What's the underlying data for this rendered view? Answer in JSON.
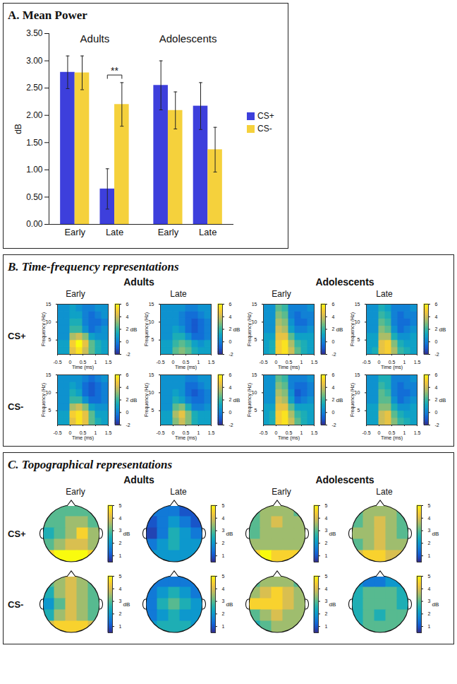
{
  "chart_data": [
    {
      "type": "bar",
      "title": "A. Mean Power",
      "ylabel": "dB",
      "categories": [
        "Early",
        "Late",
        "Early",
        "Late"
      ],
      "category_groups": [
        "Adults",
        "Adults",
        "Adolescents",
        "Adolescents"
      ],
      "series": [
        {
          "name": "CS+",
          "color": "#3d3fdc",
          "values": [
            2.79,
            0.65,
            2.55,
            2.17
          ],
          "errors": [
            0.3,
            0.37,
            0.45,
            0.43
          ]
        },
        {
          "name": "CS-",
          "color": "#f5d13c",
          "values": [
            2.78,
            2.2,
            2.09,
            1.37
          ],
          "errors": [
            0.31,
            0.4,
            0.34,
            0.41
          ]
        }
      ],
      "ylim": [
        0,
        3.5
      ],
      "yticks": [
        {
          "value": 0,
          "label": "0.00"
        },
        {
          "value": 0.5,
          "label": "0.50"
        },
        {
          "value": 1,
          "label": "1.00"
        },
        {
          "value": 1.5,
          "label": "1.50"
        },
        {
          "value": 2,
          "label": "2.00"
        },
        {
          "value": 2.5,
          "label": "2.50"
        },
        {
          "value": 3,
          "label": "3.00"
        },
        {
          "value": 3.5,
          "label": "3.50"
        }
      ],
      "legend": "right",
      "annotations": [
        {
          "text": "**",
          "category_index": 1,
          "between": [
            "CS+",
            "CS-"
          ]
        }
      ]
    },
    {
      "type": "heatmap",
      "title": "B. Time-frequency representations",
      "groups": [
        "Adults",
        "Adolescents"
      ],
      "phases": [
        "Early",
        "Late"
      ],
      "rows": [
        "CS+",
        "CS-"
      ],
      "xlabel": "Time (ms)",
      "ylabel": "Frequency (Hz)",
      "xlim": [
        -0.5,
        1.5
      ],
      "xticks": [
        -0.5,
        0,
        0.5,
        1,
        1.5
      ],
      "ylim": [
        1,
        15
      ],
      "yticks": [
        5,
        10,
        15
      ],
      "x_bins": [
        -0.5,
        -0.25,
        0,
        0.25,
        0.5,
        0.75,
        1,
        1.25,
        1.5
      ],
      "y_bins": [
        1,
        3,
        5,
        7,
        9,
        11,
        13,
        15
      ],
      "colorbar": {
        "label": "dB",
        "range": [
          -2,
          6
        ],
        "ticks": [
          -2,
          0,
          2,
          4,
          6
        ]
      },
      "maps": [
        {
          "group": "Adults",
          "phase": "Early",
          "row": "CS+",
          "cells": [
            [
              1,
              1,
              4.5,
              5.5,
              4,
              2.5,
              1.5,
              1
            ],
            [
              1,
              1,
              5,
              6,
              4.5,
              2.5,
              1.5,
              1
            ],
            [
              0.5,
              0.5,
              3.5,
              4,
              3,
              1,
              0.5,
              0.5
            ],
            [
              0.5,
              0.5,
              2,
              2,
              0.5,
              -0.5,
              0,
              0.5
            ],
            [
              0.5,
              0.5,
              1.5,
              1.5,
              0,
              -0.5,
              -0.5,
              0
            ],
            [
              0.5,
              0.5,
              1,
              1,
              0,
              -0.5,
              0,
              0.5
            ],
            [
              0.5,
              0.5,
              1,
              0.5,
              0,
              0,
              0.5,
              0.5
            ]
          ]
        },
        {
          "group": "Adults",
          "phase": "Late",
          "row": "CS+",
          "cells": [
            [
              1,
              1,
              2.5,
              3,
              2.5,
              1.5,
              1,
              1
            ],
            [
              1,
              1,
              2,
              2.5,
              2,
              1,
              0.5,
              1
            ],
            [
              0.5,
              0.5,
              1.5,
              1.5,
              0.5,
              -0.5,
              -0.5,
              0
            ],
            [
              0.5,
              0.5,
              1,
              0.5,
              -0.5,
              -1,
              -0.5,
              0
            ],
            [
              0.5,
              0.5,
              0.5,
              0,
              -0.5,
              -1,
              -0.5,
              0
            ],
            [
              0.5,
              0.5,
              0.5,
              0,
              -0.5,
              -0.5,
              0,
              0.5
            ],
            [
              0.5,
              0.5,
              0.5,
              0.5,
              0,
              0,
              0.5,
              0.5
            ]
          ]
        },
        {
          "group": "Adults",
          "phase": "Early",
          "row": "CS-",
          "cells": [
            [
              1,
              1,
              4.5,
              5.5,
              4.5,
              2.5,
              1.5,
              1
            ],
            [
              1,
              1,
              5,
              5.5,
              4.5,
              2.5,
              1,
              1
            ],
            [
              0.5,
              0.5,
              3.5,
              4,
              3,
              1,
              0.5,
              0.5
            ],
            [
              0.5,
              0.5,
              2,
              2,
              0.5,
              -0.5,
              -0.5,
              0
            ],
            [
              0.5,
              0.5,
              1.5,
              1,
              -0.5,
              -1,
              -0.5,
              0
            ],
            [
              0.5,
              0.5,
              1,
              0.5,
              -0.5,
              -1,
              -0.5,
              0
            ],
            [
              0.5,
              0.5,
              0.5,
              0.5,
              0,
              -0.5,
              0,
              0.5
            ]
          ]
        },
        {
          "group": "Adults",
          "phase": "Late",
          "row": "CS-",
          "cells": [
            [
              1,
              1,
              3,
              4,
              3,
              1.5,
              1,
              1
            ],
            [
              1,
              1,
              3.5,
              4.5,
              3,
              1.5,
              1,
              1
            ],
            [
              0.5,
              0.5,
              2.5,
              3,
              1.5,
              0,
              0,
              0.5
            ],
            [
              0.5,
              0.5,
              1.5,
              1,
              0,
              -0.5,
              -0.5,
              0
            ],
            [
              0.5,
              0.5,
              1,
              0.5,
              -0.5,
              -1,
              -0.5,
              0
            ],
            [
              0.5,
              0.5,
              0.5,
              0.5,
              -0.5,
              -0.5,
              0,
              0.5
            ],
            [
              0.5,
              0.5,
              0.5,
              0.5,
              0,
              0,
              0.5,
              0.5
            ]
          ]
        },
        {
          "group": "Adolescents",
          "phase": "Early",
          "row": "CS+",
          "cells": [
            [
              1,
              1.5,
              5,
              5.5,
              4,
              2.5,
              1.5,
              1
            ],
            [
              1,
              1.5,
              5,
              5.5,
              3.5,
              2,
              1.5,
              1
            ],
            [
              1,
              1,
              4.5,
              4.5,
              2.5,
              1,
              1,
              1
            ],
            [
              0.5,
              0.5,
              4,
              3.5,
              1,
              0,
              0,
              0.5
            ],
            [
              0.5,
              0.5,
              3.5,
              3,
              0.5,
              -0.5,
              -0.5,
              0
            ],
            [
              0.5,
              0.5,
              3,
              2.5,
              0,
              -0.5,
              0,
              0
            ],
            [
              0.5,
              0.5,
              2.5,
              2,
              0,
              0,
              0,
              0.5
            ]
          ]
        },
        {
          "group": "Adolescents",
          "phase": "Late",
          "row": "CS+",
          "cells": [
            [
              1,
              1.5,
              4.5,
              5,
              3.5,
              2,
              1.5,
              1
            ],
            [
              1,
              1,
              4.5,
              5,
              3,
              1.5,
              1,
              1
            ],
            [
              1,
              1,
              3.5,
              3.5,
              1.5,
              0.5,
              0.5,
              1
            ],
            [
              0.5,
              0.5,
              3,
              2.5,
              0.5,
              -0.5,
              0,
              0.5
            ],
            [
              0.5,
              0.5,
              2.5,
              2,
              0,
              -0.5,
              -0.5,
              0
            ],
            [
              0.5,
              0.5,
              2,
              1.5,
              0,
              -0.5,
              0,
              0
            ],
            [
              0.5,
              0.5,
              1.5,
              1,
              0,
              0,
              0,
              0.5
            ]
          ]
        },
        {
          "group": "Adolescents",
          "phase": "Early",
          "row": "CS-",
          "cells": [
            [
              1,
              1.5,
              5,
              5.5,
              4,
              2.5,
              1.5,
              1
            ],
            [
              1,
              1.5,
              5,
              5.5,
              3.5,
              2,
              1.5,
              1
            ],
            [
              1,
              1,
              4.5,
              4.5,
              2.5,
              1,
              1,
              1
            ],
            [
              0.5,
              0.5,
              4,
              3.5,
              1,
              -0.5,
              0,
              0.5
            ],
            [
              0.5,
              0.5,
              3.5,
              3,
              0.5,
              -1,
              -0.5,
              0
            ],
            [
              0.5,
              0.5,
              3,
              2.5,
              0,
              -0.5,
              -0.5,
              0
            ],
            [
              0.5,
              0.5,
              2.5,
              2,
              0,
              0,
              0,
              0.5
            ]
          ]
        },
        {
          "group": "Adolescents",
          "phase": "Late",
          "row": "CS-",
          "cells": [
            [
              1,
              1,
              4,
              4.5,
              3,
              2,
              1.5,
              1
            ],
            [
              1,
              1,
              4,
              4.5,
              2.5,
              1.5,
              1,
              1
            ],
            [
              1,
              1,
              3,
              3,
              1.5,
              0.5,
              0.5,
              1
            ],
            [
              0.5,
              0.5,
              2.5,
              2.5,
              0.5,
              -0.5,
              0,
              0.5
            ],
            [
              0.5,
              0.5,
              2.5,
              2,
              0,
              -0.5,
              -0.5,
              0
            ],
            [
              0.5,
              0.5,
              2,
              1.5,
              0,
              -0.5,
              0,
              0
            ],
            [
              0.5,
              0.5,
              1.5,
              1.5,
              0,
              0,
              0,
              0.5
            ]
          ]
        }
      ]
    },
    {
      "type": "topomap",
      "title": "C. Topographical representations",
      "groups": [
        "Adults",
        "Adolescents"
      ],
      "phases": [
        "Early",
        "Late"
      ],
      "rows": [
        "CS+",
        "CS-"
      ],
      "tick_labels": false,
      "colorbar": {
        "label": "dB",
        "range": [
          0.5,
          5
        ],
        "ticks": [
          1,
          2,
          3,
          4,
          5
        ]
      },
      "maps": [
        {
          "group": "Adults",
          "phase": "Early",
          "row": "CS+",
          "cells": [
            [
              3,
              3,
              3,
              3,
              3
            ],
            [
              3,
              3,
              3.5,
              3.5,
              3
            ],
            [
              2.5,
              3,
              3.5,
              4.5,
              3.5
            ],
            [
              3,
              3.5,
              4,
              4,
              3.5
            ],
            [
              4.5,
              5,
              5,
              5,
              4.5
            ]
          ]
        },
        {
          "group": "Adults",
          "phase": "Late",
          "row": "CS+",
          "cells": [
            [
              1.5,
              1.5,
              1.5,
              1,
              1
            ],
            [
              1,
              1.5,
              2,
              1.5,
              1
            ],
            [
              0.8,
              1.5,
              2.5,
              2,
              1.5
            ],
            [
              1.5,
              2,
              2.5,
              2,
              2
            ],
            [
              2,
              2,
              2,
              2,
              2
            ]
          ]
        },
        {
          "group": "Adults",
          "phase": "Early",
          "row": "CS-",
          "cells": [
            [
              3,
              3.5,
              4,
              3.5,
              3
            ],
            [
              2.5,
              3.5,
              4,
              3.5,
              3
            ],
            [
              2,
              3,
              4,
              3.5,
              3
            ],
            [
              2.5,
              3.5,
              4,
              3.5,
              3
            ],
            [
              4,
              4.5,
              4.5,
              4.5,
              4
            ]
          ]
        },
        {
          "group": "Adults",
          "phase": "Late",
          "row": "CS-",
          "cells": [
            [
              1.5,
              1.5,
              1.5,
              1.5,
              1.5
            ],
            [
              1.5,
              2,
              2.5,
              2,
              1.5
            ],
            [
              1.5,
              2.5,
              3,
              2.5,
              2
            ],
            [
              1.5,
              2,
              2.5,
              2,
              2
            ],
            [
              2,
              2.5,
              2.5,
              2.5,
              2
            ]
          ]
        },
        {
          "group": "Adolescents",
          "phase": "Early",
          "row": "CS+",
          "cells": [
            [
              3,
              3.5,
              3.5,
              3.5,
              3
            ],
            [
              3,
              3.5,
              4,
              3.5,
              3.5
            ],
            [
              3,
              3.5,
              3.5,
              3.5,
              3.5
            ],
            [
              3.5,
              3.5,
              3.5,
              3.5,
              3.5
            ],
            [
              4.5,
              5,
              4.5,
              4.5,
              4.5
            ]
          ]
        },
        {
          "group": "Adolescents",
          "phase": "Late",
          "row": "CS+",
          "cells": [
            [
              3,
              3.5,
              3.5,
              3.5,
              3
            ],
            [
              3,
              3.5,
              4,
              3.5,
              3
            ],
            [
              3.5,
              3.5,
              4,
              3.5,
              3
            ],
            [
              3,
              3.5,
              4,
              3.5,
              3.5
            ],
            [
              4,
              4.5,
              4.5,
              4,
              4
            ]
          ]
        },
        {
          "group": "Adolescents",
          "phase": "Early",
          "row": "CS-",
          "cells": [
            [
              3,
              3.5,
              3.5,
              3.5,
              3
            ],
            [
              3.5,
              4,
              4.5,
              4,
              3.5
            ],
            [
              4.5,
              4.5,
              4.5,
              4,
              3.5
            ],
            [
              3,
              3.5,
              4,
              3.5,
              3.5
            ],
            [
              2.5,
              3,
              3.5,
              3.5,
              3.5
            ]
          ]
        },
        {
          "group": "Adolescents",
          "phase": "Late",
          "row": "CS-",
          "cells": [
            [
              2,
              1.5,
              1.5,
              2,
              2
            ],
            [
              2.5,
              3,
              3,
              3,
              2.5
            ],
            [
              2.5,
              3,
              3,
              3,
              2.5
            ],
            [
              2.5,
              3,
              2.5,
              3,
              3
            ],
            [
              2.5,
              3,
              3,
              3,
              3
            ]
          ]
        }
      ]
    }
  ]
}
